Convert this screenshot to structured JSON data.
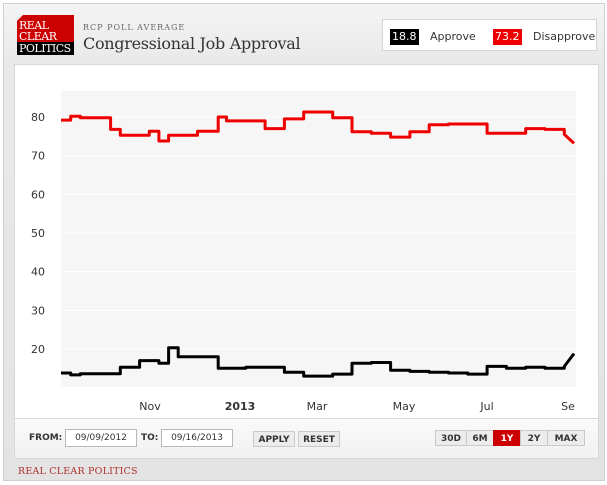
{
  "header": {
    "logo_lines": [
      "REAL",
      "CLEAR",
      "POLITICS"
    ],
    "subtitle": "RCP POLL AVERAGE",
    "title": "Congressional Job Approval"
  },
  "legend": {
    "approve": {
      "value": "18.8",
      "label": "Approve",
      "color": "#000000"
    },
    "disapprove": {
      "value": "73.2",
      "label": "Disapprove",
      "color": "#ee0000"
    }
  },
  "controls": {
    "from_label": "FROM:",
    "from_value": "09/09/2012",
    "to_label": "TO:",
    "to_value": "09/16/2013",
    "apply_label": "APPLY",
    "reset_label": "RESET",
    "ranges": [
      {
        "label": "30D",
        "active": false
      },
      {
        "label": "6M",
        "active": false
      },
      {
        "label": "1Y",
        "active": true
      },
      {
        "label": "2Y",
        "active": false
      },
      {
        "label": "MAX",
        "active": false
      }
    ]
  },
  "footer": {
    "text": "REAL CLEAR POLITICS"
  },
  "chart_data": {
    "type": "line",
    "title": "Congressional Job Approval",
    "subtitle": "RCP POLL AVERAGE",
    "xlabel": "",
    "ylabel": "",
    "ylim": [
      12,
      87
    ],
    "yticks": [
      20,
      30,
      40,
      50,
      60,
      70,
      80
    ],
    "xticks": [
      "Nov",
      "2013",
      "Mar",
      "May",
      "Jul",
      "Se"
    ],
    "grid": true,
    "legend_position": "top-right",
    "x_range": [
      "09/09/2012",
      "09/16/2013"
    ],
    "x": [
      "2012-09-09",
      "2012-09-16",
      "2012-09-23",
      "2012-10-01",
      "2012-10-15",
      "2012-10-22",
      "2012-11-05",
      "2012-11-12",
      "2012-11-19",
      "2012-11-26",
      "2012-12-03",
      "2012-12-17",
      "2013-01-01",
      "2013-01-07",
      "2013-01-21",
      "2013-02-04",
      "2013-02-18",
      "2013-03-04",
      "2013-03-11",
      "2013-03-25",
      "2013-04-08",
      "2013-04-22",
      "2013-05-06",
      "2013-05-20",
      "2013-06-03",
      "2013-06-17",
      "2013-07-01",
      "2013-07-15",
      "2013-07-29",
      "2013-08-12",
      "2013-08-26",
      "2013-09-09",
      "2013-09-16"
    ],
    "series": [
      {
        "name": "Disapprove",
        "color": "#ee0000",
        "values": [
          79.2,
          80.2,
          79.8,
          79.8,
          76.8,
          75.3,
          75.3,
          76.3,
          73.8,
          75.3,
          75.3,
          76.3,
          80.0,
          79.0,
          79.0,
          77.0,
          79.5,
          81.3,
          81.3,
          79.8,
          76.2,
          75.8,
          74.8,
          76.2,
          78.0,
          78.2,
          78.2,
          75.8,
          75.8,
          77.0,
          76.8,
          75.5,
          73.2
        ]
      },
      {
        "name": "Approve",
        "color": "#000000",
        "values": [
          13.8,
          13.3,
          13.6,
          13.6,
          13.6,
          15.3,
          17.0,
          17.0,
          16.3,
          20.3,
          18.0,
          18.0,
          15.0,
          15.0,
          15.3,
          15.3,
          14.0,
          13.0,
          13.0,
          13.5,
          16.3,
          16.5,
          14.5,
          14.2,
          14.0,
          13.8,
          13.5,
          15.5,
          15.0,
          15.3,
          15.0,
          15.5,
          18.8
        ]
      }
    ]
  }
}
